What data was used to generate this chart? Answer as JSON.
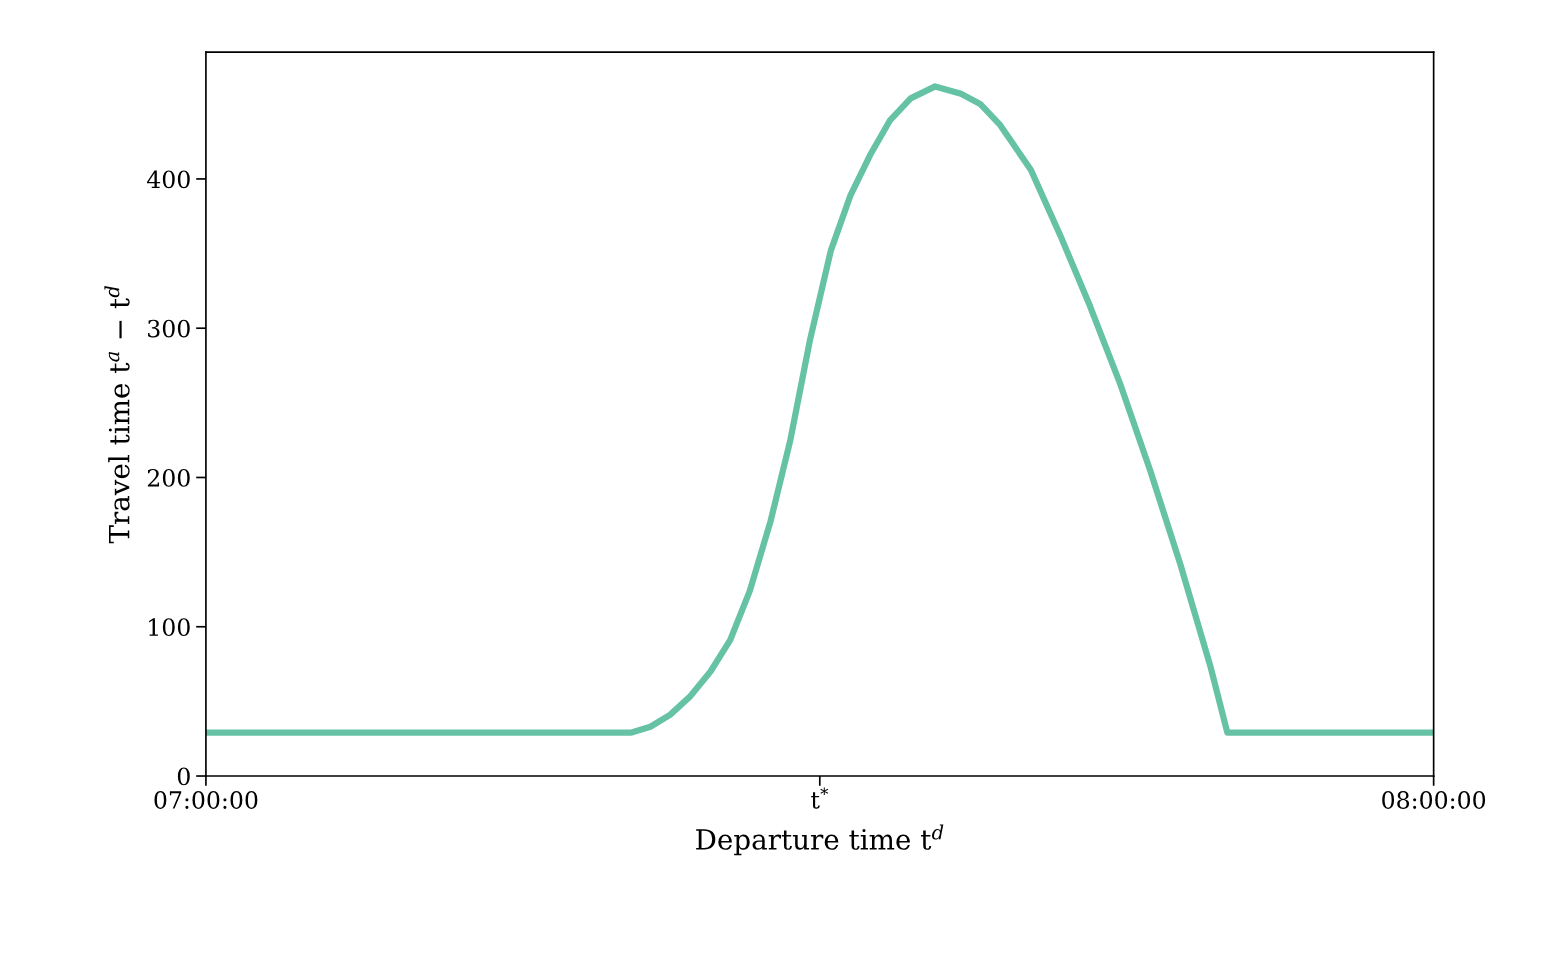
{
  "chart_data": {
    "type": "line",
    "xlabel": "Departure time t$^{d}$",
    "ylabel": "Travel time t$^{a}$ − t$^{d}$",
    "series": [
      {
        "color": "#66c2a5",
        "x": [
          7.0,
          7.346,
          7.362,
          7.378,
          7.394,
          7.411,
          7.427,
          7.443,
          7.46,
          7.476,
          7.492,
          7.509,
          7.525,
          7.541,
          7.557,
          7.574,
          7.594,
          7.615,
          7.631,
          7.647,
          7.672,
          7.696,
          7.72,
          7.745,
          7.769,
          7.794,
          7.818,
          7.832,
          8.0
        ],
        "values": [
          29,
          29,
          33,
          41,
          53,
          70,
          91,
          124,
          171,
          225,
          292,
          352,
          389,
          416,
          439,
          454,
          462,
          457,
          450,
          436,
          406,
          362,
          315,
          262,
          205,
          141,
          74,
          29,
          29
        ]
      }
    ],
    "xlim": [
      7,
      8
    ],
    "xticks": [
      {
        "value": 7,
        "label": "07:00:00"
      },
      {
        "value": 7.5,
        "label": "t$^{*}$"
      },
      {
        "value": 8,
        "label": "08:00:00"
      }
    ],
    "ylim": [
      0,
      485
    ],
    "yticks": [
      0,
      100,
      200,
      300,
      400
    ],
    "grid": false,
    "legend": false,
    "line_style": "solid",
    "marker": "none"
  }
}
